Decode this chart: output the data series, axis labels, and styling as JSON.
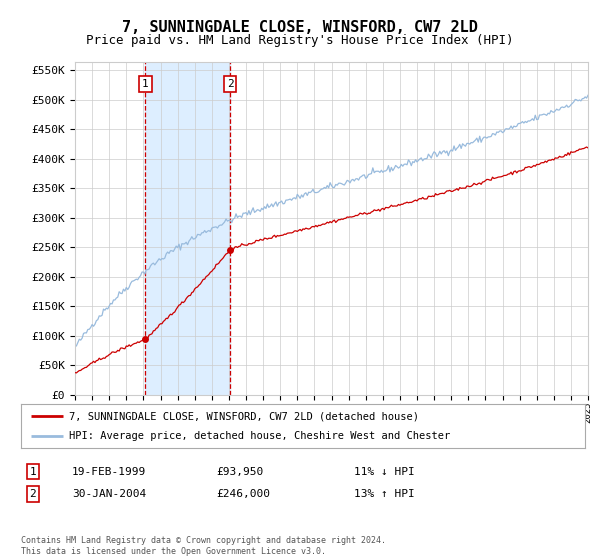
{
  "title": "7, SUNNINGDALE CLOSE, WINSFORD, CW7 2LD",
  "subtitle": "Price paid vs. HM Land Registry's House Price Index (HPI)",
  "yticks": [
    0,
    50000,
    100000,
    150000,
    200000,
    250000,
    300000,
    350000,
    400000,
    450000,
    500000,
    550000
  ],
  "ytick_labels": [
    "£0",
    "£50K",
    "£100K",
    "£150K",
    "£200K",
    "£250K",
    "£300K",
    "£350K",
    "£400K",
    "£450K",
    "£500K",
    "£550K"
  ],
  "year_start": 1995,
  "year_end": 2025,
  "sale1_date": 1999.12,
  "sale1_price": 93950,
  "sale2_date": 2004.08,
  "sale2_price": 246000,
  "vline_color": "#cc0000",
  "shade_color": "#ddeeff",
  "red_line_color": "#cc0000",
  "blue_line_color": "#99bbdd",
  "legend_entry1": "7, SUNNINGDALE CLOSE, WINSFORD, CW7 2LD (detached house)",
  "legend_entry2": "HPI: Average price, detached house, Cheshire West and Chester",
  "table_row1": [
    "1",
    "19-FEB-1999",
    "£93,950",
    "11% ↓ HPI"
  ],
  "table_row2": [
    "2",
    "30-JAN-2004",
    "£246,000",
    "13% ↑ HPI"
  ],
  "footnote1": "Contains HM Land Registry data © Crown copyright and database right 2024.",
  "footnote2": "This data is licensed under the Open Government Licence v3.0.",
  "background_color": "#ffffff",
  "grid_color": "#cccccc",
  "title_fontsize": 11,
  "subtitle_fontsize": 9,
  "axis_fontsize": 8
}
